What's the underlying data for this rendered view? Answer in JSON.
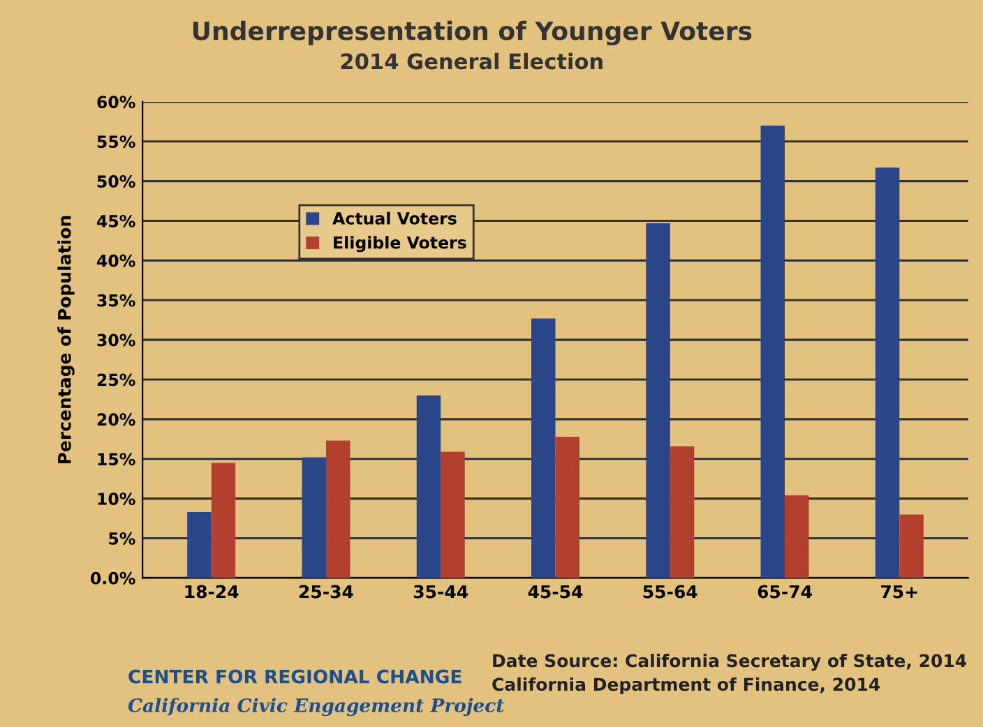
{
  "chart_data": {
    "type": "bar",
    "title": "Underrepresentation of Younger Voters",
    "subtitle": "2014 General Election",
    "ylabel": "Percentage of Population",
    "categories": [
      "18-24",
      "25-34",
      "35-44",
      "45-54",
      "55-64",
      "65-74",
      "75+"
    ],
    "series": [
      {
        "name": "Actual Voters",
        "color": "#2b4589",
        "values": [
          8.3,
          15.2,
          23.0,
          32.7,
          44.7,
          57.0,
          51.7
        ]
      },
      {
        "name": "Eligible Voters",
        "color": "#b3402f",
        "values": [
          14.5,
          17.3,
          15.9,
          17.8,
          16.6,
          10.4,
          8.0
        ]
      }
    ],
    "ylim": [
      0,
      60
    ],
    "yticks": [
      {
        "value": 0,
        "label": "0.0%"
      },
      {
        "value": 5,
        "label": "5%"
      },
      {
        "value": 10,
        "label": "10%"
      },
      {
        "value": 15,
        "label": "15%"
      },
      {
        "value": 20,
        "label": "20%"
      },
      {
        "value": 25,
        "label": "25%"
      },
      {
        "value": 30,
        "label": "30%"
      },
      {
        "value": 35,
        "label": "35%"
      },
      {
        "value": 40,
        "label": "40%"
      },
      {
        "value": 45,
        "label": "45%"
      },
      {
        "value": 50,
        "label": "50%"
      },
      {
        "value": 55,
        "label": "55%"
      },
      {
        "value": 60,
        "label": "60%"
      }
    ],
    "grid": "y",
    "legend": "top left",
    "annotations": [
      "CENTER FOR REGIONAL CHANGE",
      "California Civic Engagement Project",
      "Date Source: California Secretary of State, 2014\nCalifornia Department of Finance, 2014"
    ]
  }
}
